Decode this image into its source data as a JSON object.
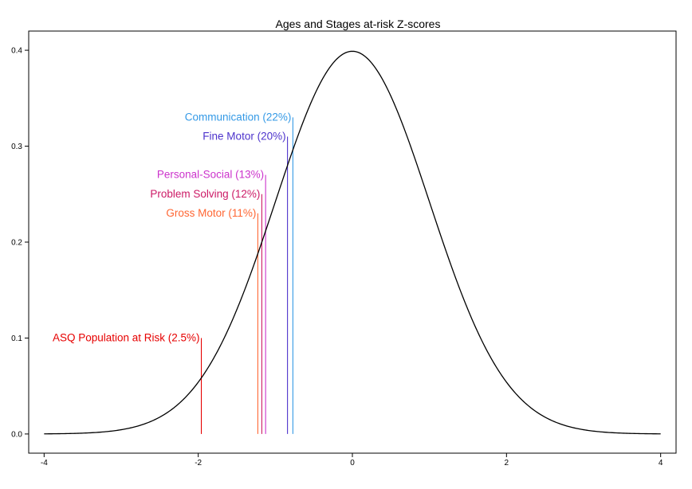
{
  "chart_data": {
    "type": "line",
    "title": "Ages and Stages at-risk Z-scores",
    "xlabel": "",
    "ylabel": "",
    "xlim": [
      -4.2,
      4.2
    ],
    "ylim": [
      -0.02,
      0.42
    ],
    "x_ticks": [
      -4,
      -2,
      0,
      2,
      4
    ],
    "x_tick_labels": [
      "-4",
      "-2",
      "0",
      "2",
      "4"
    ],
    "y_ticks": [
      0.0,
      0.1,
      0.2,
      0.3,
      0.4
    ],
    "y_tick_labels": [
      "0.0",
      "0.1",
      "0.2",
      "0.3",
      "0.4"
    ],
    "grid": false,
    "series": [
      {
        "color": "#000000",
        "curve": "standard normal density",
        "x_range": [
          -4,
          4
        ]
      }
    ],
    "annotations": [
      {
        "label": "Communication (22%)",
        "x": -0.772,
        "y_top": 0.33,
        "color": "#3399e6"
      },
      {
        "label": "Fine Motor (20%)",
        "x": -0.842,
        "y_top": 0.31,
        "color": "#4d33cc"
      },
      {
        "label": "Personal-Social (13%)",
        "x": -1.126,
        "y_top": 0.27,
        "color": "#cc33cc"
      },
      {
        "label": "Problem Solving (12%)",
        "x": -1.175,
        "y_top": 0.25,
        "color": "#cc1a66"
      },
      {
        "label": "Gross Motor (11%)",
        "x": -1.227,
        "y_top": 0.23,
        "color": "#ff6633"
      },
      {
        "label": "ASQ Population at Risk (2.5%)",
        "x": -1.96,
        "y_top": 0.1,
        "color": "#e60000"
      }
    ]
  }
}
